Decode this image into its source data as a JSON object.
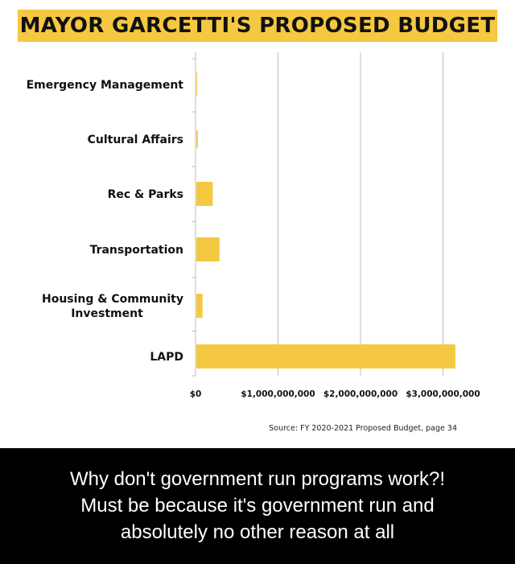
{
  "title": "MAYOR GARCETTI'S PROPOSED BUDGET",
  "source": "Source: FY 2020-2021 Proposed Budget, page 34",
  "caption": {
    "line1": "Why don't government run programs work?!",
    "line2": "Must be because it's government run and",
    "line3": "absolutely no other reason at all"
  },
  "colors": {
    "bar": "#f5c842",
    "banner": "#f5c842",
    "grid": "#bdbdbd"
  },
  "chart_data": {
    "type": "bar",
    "orientation": "horizontal",
    "title": "MAYOR GARCETTI'S PROPOSED BUDGET",
    "categories": [
      [
        "Emergency Management"
      ],
      [
        "Cultural Affairs"
      ],
      [
        "Rec & Parks"
      ],
      [
        "Transportation"
      ],
      [
        "Housing & Community",
        "Investment"
      ],
      [
        "LAPD"
      ]
    ],
    "values": [
      4000000,
      18000000,
      200000000,
      280000000,
      75000000,
      3140000000
    ],
    "xlim": [
      0,
      3200000000
    ],
    "xticks": [
      0,
      1000000000,
      2000000000,
      3000000000
    ],
    "xtick_labels": [
      "$0",
      "$1,000,000,000",
      "$2,000,000,000",
      "$3,000,000,000"
    ],
    "grid": true,
    "xlabel": "",
    "ylabel": ""
  }
}
